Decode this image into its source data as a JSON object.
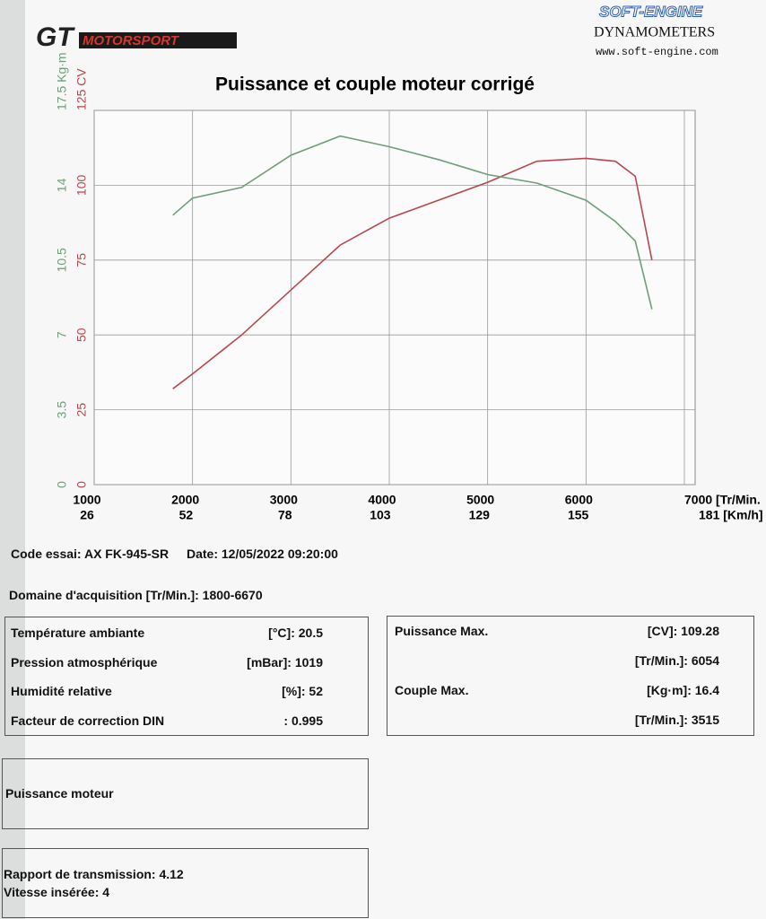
{
  "header": {
    "brand_left": "GT",
    "brand_left_sub": "MOTORSPORT",
    "brand_right": "SOFT-ENGINE",
    "brand_right_sub": "DYNAMOMETERS",
    "website": "www.soft-engine.com"
  },
  "chart_data": {
    "type": "line",
    "title": "Puissance et couple moteur corrigé",
    "x": [
      1800,
      2000,
      2500,
      3000,
      3500,
      4000,
      4500,
      5000,
      5500,
      6000,
      6300,
      6500,
      6670
    ],
    "xlim": [
      1000,
      7000
    ],
    "xticks": [
      1000,
      2000,
      3000,
      4000,
      5000,
      6000,
      {
        "value": 7000,
        "label": "7000 [Tr/Min."
      }
    ],
    "x2lim": [
      26,
      181
    ],
    "x2ticks": [
      26,
      52,
      78,
      103,
      129,
      155,
      {
        "value": 181,
        "label": "181 [Km/h]"
      }
    ],
    "ylim": [
      0,
      125
    ],
    "yticks": [
      0,
      25,
      50,
      75,
      100,
      {
        "value": 125,
        "label": "125 CV"
      }
    ],
    "y2lim": [
      0,
      17.5
    ],
    "y2ticks": [
      0,
      3.5,
      7,
      10.5,
      14,
      {
        "value": 17.5,
        "label": "17.5 Kg·m"
      }
    ],
    "grid": true,
    "series": [
      {
        "name": "Puissance",
        "color": "#b8474f",
        "values": [
          32,
          37,
          50,
          65,
          80,
          89,
          95,
          101,
          108,
          109,
          108,
          103,
          75
        ]
      },
      {
        "name": "Couple",
        "color": "#6f9e78",
        "axis": "y2",
        "values": [
          12.6,
          13.4,
          13.9,
          15.4,
          16.3,
          15.8,
          15.2,
          14.5,
          14.1,
          13.3,
          12.3,
          11.4,
          8.2
        ]
      }
    ]
  },
  "test_info": {
    "code": "Code essai: AX FK-945-SR",
    "date": "Date: 12/05/2022 09:20:00",
    "domain": "Domaine d'acquisition [Tr/Min.]: 1800-6670"
  },
  "conditions": {
    "rows": [
      {
        "label": "Température ambiante",
        "value": "[°C]: 20.5"
      },
      {
        "label": "Pression atmosphérique",
        "value": "[mBar]: 1019"
      },
      {
        "label": "Humidité relative",
        "value": "[%]: 52"
      },
      {
        "label": "Facteur de correction DIN",
        "value": ": 0.995"
      }
    ]
  },
  "maxima": {
    "rows": [
      {
        "label": "Puissance Max.",
        "value": "[CV]: 109.28"
      },
      {
        "value": "[Tr/Min.]: 6054"
      },
      {
        "label": "Couple Max.",
        "value": "[Kg·m]: 16.4"
      },
      {
        "value": "[Tr/Min.]: 3515"
      }
    ]
  },
  "boxes": {
    "power": "Puissance moteur",
    "transmission": "Rapport de transmission: 4.12",
    "gear": "Vitesse insérée: 4"
  }
}
